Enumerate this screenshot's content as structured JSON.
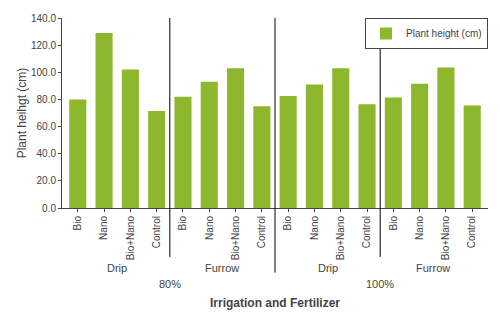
{
  "chart_data": {
    "type": "bar",
    "categories": [
      "Bio",
      "Nano",
      "Bio+Nano",
      "Control",
      "Bio",
      "Nano",
      "Bio+Nano",
      "Control",
      "Bio",
      "Nano",
      "Bio+Nano",
      "Control",
      "Bio",
      "Nano",
      "Bio+Nano",
      "Control"
    ],
    "category_levels": [
      [
        "80%",
        "80%",
        "80%",
        "80%",
        "80%",
        "80%",
        "80%",
        "80%",
        "100%",
        "100%",
        "100%",
        "100%",
        "100%",
        "100%",
        "100%",
        "100%"
      ],
      [
        "Drip",
        "Drip",
        "Drip",
        "Drip",
        "Furrow",
        "Furrow",
        "Furrow",
        "Furrow",
        "Drip",
        "Drip",
        "Drip",
        "Drip",
        "Furrow",
        "Furrow",
        "Furrow",
        "Furrow"
      ]
    ],
    "xlabel": "Irrigation and Fertilizer",
    "ylabel": "Plant heihgt (cm)",
    "series": [
      {
        "name": "Plant height (cm)",
        "color": "#8db82e",
        "values": [
          80.0,
          129.0,
          102.0,
          71.5,
          82.0,
          93.0,
          103.0,
          75.0,
          82.5,
          91.0,
          103.0,
          76.5,
          81.5,
          91.5,
          103.5,
          75.5
        ]
      }
    ],
    "ylim": [
      0,
      140
    ],
    "yticks": [
      {
        "value": 0,
        "label": "0.0"
      },
      {
        "value": 20,
        "label": "20.0"
      },
      {
        "value": 40,
        "label": "40.0"
      },
      {
        "value": 60,
        "label": "60.0"
      },
      {
        "value": 80,
        "label": "80.0"
      },
      {
        "value": 100,
        "label": "100.0"
      },
      {
        "value": 120,
        "label": "120.0"
      },
      {
        "value": 140,
        "label": "140.0"
      }
    ],
    "grid": false,
    "legend": "upper right"
  }
}
